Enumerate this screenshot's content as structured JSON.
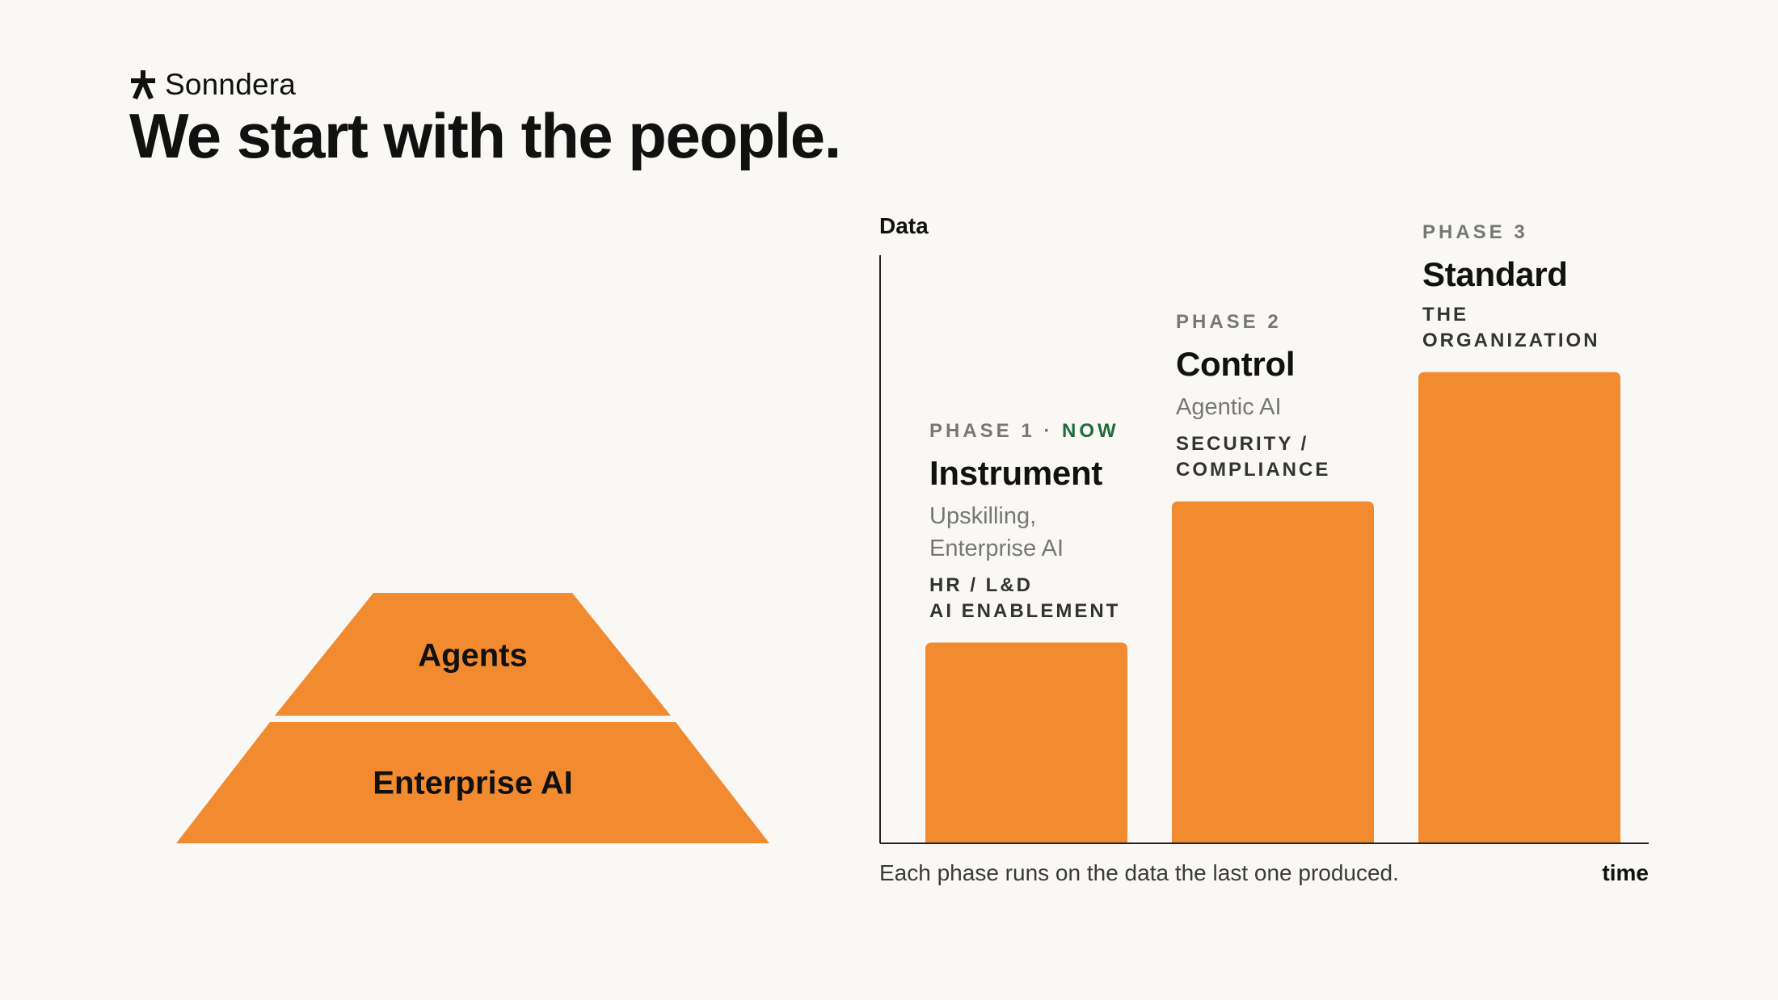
{
  "brand": {
    "name": "Sonndera",
    "logo_icon": "star-figure-icon"
  },
  "title": "We start with the people.",
  "pyramid": {
    "color": "#f28a30",
    "layers": [
      {
        "label": "Agents"
      },
      {
        "label": "Enterprise AI"
      }
    ]
  },
  "chart_data": {
    "type": "bar",
    "ylabel": "Data",
    "xlabel": "time",
    "caption": "Each phase runs on the data the last one produced.",
    "bar_color": "#f28a30",
    "ylim": [
      0,
      1
    ],
    "values": [
      0.34,
      0.58,
      0.8
    ],
    "categories": [
      {
        "phase": "PHASE 1",
        "separator": " · ",
        "status": "NOW",
        "name": "Instrument",
        "desc": [
          "Upskilling,",
          "Enterprise AI"
        ],
        "team": [
          "HR / L&D",
          "AI ENABLEMENT"
        ]
      },
      {
        "phase": "PHASE 2",
        "name": "Control",
        "desc": [
          "Agentic AI"
        ],
        "team": [
          "SECURITY /",
          "COMPLIANCE"
        ]
      },
      {
        "phase": "PHASE 3",
        "name": "Standard",
        "desc": [],
        "team": [
          "THE",
          "ORGANIZATION"
        ]
      }
    ]
  }
}
